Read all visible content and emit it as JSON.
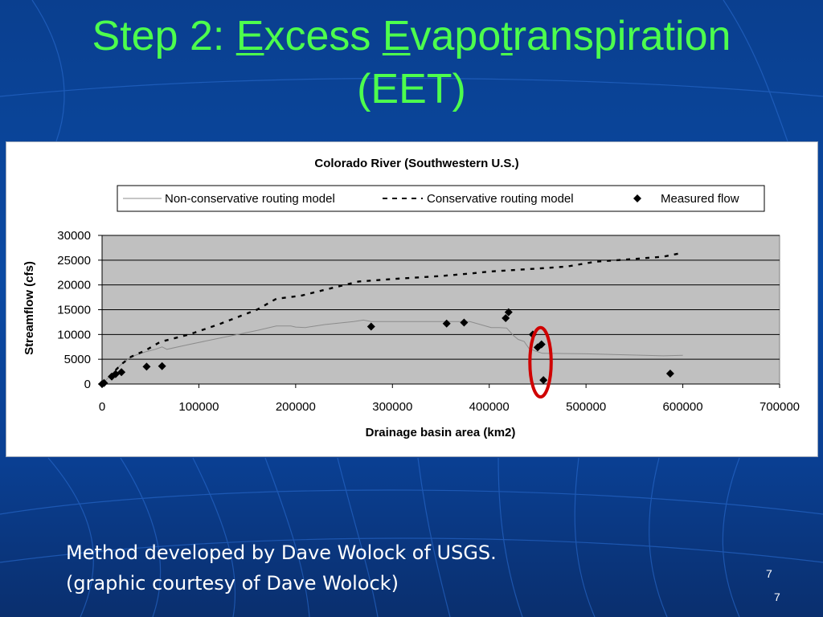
{
  "slide": {
    "title": {
      "prefix": "Step 2: ",
      "w1_ul": "E",
      "w1_rest": "xcess ",
      "w2_ul": "E",
      "w2_mid": "vapo",
      "w2_ul2": "t",
      "w2_rest": "ranspiration",
      "line2": "(EET)"
    },
    "caption_line1": "Method developed by Dave Wolock of USGS.",
    "caption_line2": "(graphic courtesy of Dave Wolock)",
    "page_number_a": "7",
    "page_number_b": "7"
  },
  "chart_data": {
    "type": "line",
    "title": "Colorado River (Southwestern U.S.)",
    "xlabel": "Drainage basin area (km2)",
    "ylabel": "Streamflow (cfs)",
    "xlim": [
      0,
      700000
    ],
    "ylim": [
      0,
      30000
    ],
    "x_ticks": [
      "0",
      "100000",
      "200000",
      "300000",
      "400000",
      "500000",
      "600000",
      "700000"
    ],
    "y_ticks": [
      "0",
      "5000",
      "10000",
      "15000",
      "20000",
      "25000",
      "30000"
    ],
    "grid": true,
    "legend_position": "top",
    "series": [
      {
        "name": "Non-conservative routing model",
        "style": "solid-line",
        "color": "#8c8c8c",
        "points": [
          [
            0,
            0
          ],
          [
            10000,
            2000
          ],
          [
            20000,
            4000
          ],
          [
            30000,
            5500
          ],
          [
            45000,
            6500
          ],
          [
            55000,
            7000
          ],
          [
            62000,
            7500
          ],
          [
            67000,
            7000
          ],
          [
            90000,
            8000
          ],
          [
            120000,
            9200
          ],
          [
            160000,
            10800
          ],
          [
            180000,
            11700
          ],
          [
            195000,
            11700
          ],
          [
            200000,
            11500
          ],
          [
            210000,
            11400
          ],
          [
            230000,
            12000
          ],
          [
            260000,
            12600
          ],
          [
            270000,
            12900
          ],
          [
            278000,
            12600
          ],
          [
            300000,
            12600
          ],
          [
            350000,
            12600
          ],
          [
            380000,
            12600
          ],
          [
            402000,
            11400
          ],
          [
            410000,
            11400
          ],
          [
            418000,
            11300
          ],
          [
            425000,
            9800
          ],
          [
            430000,
            9000
          ],
          [
            436000,
            8600
          ],
          [
            441000,
            7200
          ],
          [
            447000,
            6700
          ],
          [
            455000,
            6200
          ],
          [
            500000,
            6100
          ],
          [
            560000,
            5800
          ],
          [
            580000,
            5700
          ],
          [
            600000,
            5800
          ]
        ]
      },
      {
        "name": "Conservative routing model",
        "style": "dashed-line",
        "color": "#000000",
        "points": [
          [
            0,
            0
          ],
          [
            10000,
            2000
          ],
          [
            20000,
            4000
          ],
          [
            30000,
            5500
          ],
          [
            45000,
            6800
          ],
          [
            60000,
            8500
          ],
          [
            90000,
            10000
          ],
          [
            120000,
            12000
          ],
          [
            160000,
            15000
          ],
          [
            180000,
            17200
          ],
          [
            205000,
            17800
          ],
          [
            240000,
            19500
          ],
          [
            265000,
            20700
          ],
          [
            300000,
            21200
          ],
          [
            350000,
            21800
          ],
          [
            380000,
            22300
          ],
          [
            400000,
            22700
          ],
          [
            450000,
            23300
          ],
          [
            480000,
            23700
          ],
          [
            510000,
            24700
          ],
          [
            540000,
            25100
          ],
          [
            580000,
            25700
          ],
          [
            600000,
            26500
          ]
        ]
      },
      {
        "name": "Measured flow",
        "style": "diamond-marker",
        "color": "#000000",
        "points": [
          [
            0,
            0
          ],
          [
            2000,
            200
          ],
          [
            10000,
            1500
          ],
          [
            14000,
            2000
          ],
          [
            20000,
            2400
          ],
          [
            46000,
            3500
          ],
          [
            62000,
            3600
          ],
          [
            278000,
            11600
          ],
          [
            356000,
            12200
          ],
          [
            374000,
            12400
          ],
          [
            417000,
            13300
          ],
          [
            420000,
            14500
          ],
          [
            445000,
            10000
          ],
          [
            450000,
            7400
          ],
          [
            454000,
            8000
          ],
          [
            456000,
            800
          ],
          [
            587000,
            2100
          ]
        ]
      }
    ],
    "annotation": {
      "type": "red-ellipse",
      "center": [
        453000,
        4400
      ],
      "radius_x": 11000,
      "radius_y": 7000
    }
  }
}
